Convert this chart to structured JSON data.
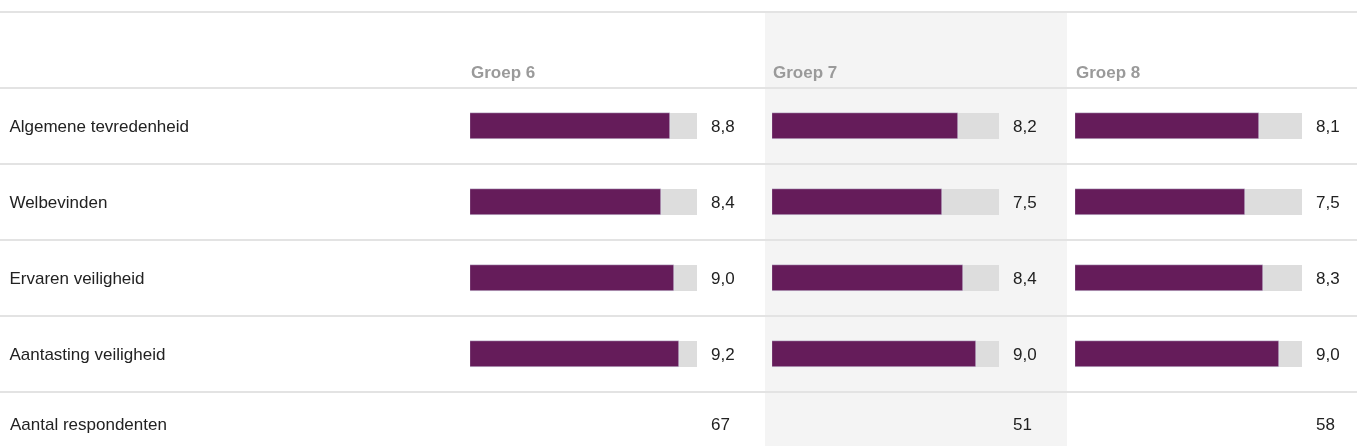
{
  "chart_data": [
    {
      "type": "bar",
      "orientation": "horizontal",
      "title": "Groep 6",
      "categories": [
        "Algemene tevredenheid",
        "Welbevinden",
        "Ervaren veiligheid",
        "Aantasting veiligheid"
      ],
      "values": [
        8.8,
        8.4,
        9.0,
        9.2
      ],
      "value_labels": [
        "8,8",
        "8,4",
        "9,0",
        "9,2"
      ],
      "color": "#651c5a",
      "xlim": [
        0,
        10
      ],
      "tick_labels": "y",
      "annotations": [
        "Aantal respondenten",
        "67"
      ]
    },
    {
      "type": "bar",
      "orientation": "horizontal",
      "title": "Groep 7",
      "categories": [
        null,
        null,
        null,
        null
      ],
      "values": [
        8.2,
        7.5,
        8.4,
        9.0
      ],
      "value_labels": [
        "8,2",
        "7,5",
        "8,4",
        "9,0"
      ],
      "color": "#651c5a",
      "xlim": [
        0,
        10
      ],
      "tick_labels": false,
      "annotations": [
        "51"
      ]
    },
    {
      "type": "bar",
      "orientation": "horizontal",
      "title": "Groep 8",
      "categories": [
        null,
        null,
        null,
        null
      ],
      "values": [
        8.1,
        7.5,
        8.3,
        9.0
      ],
      "value_labels": [
        "8,1",
        "7,5",
        "8,3",
        "9,0"
      ],
      "color": "#651c5a",
      "xlim": [
        0,
        10
      ],
      "tick_labels": false,
      "annotations": [
        "58"
      ]
    }
  ]
}
